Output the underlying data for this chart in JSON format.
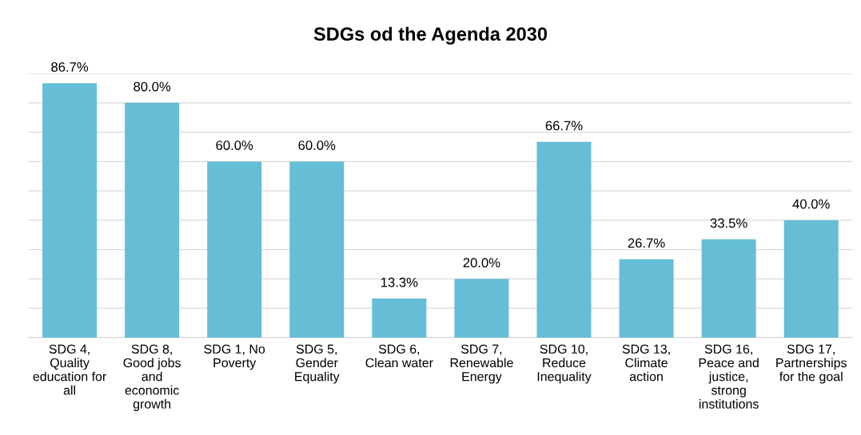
{
  "chart_data": {
    "type": "bar",
    "title": "SDGs od the Agenda 2030",
    "categories": [
      "SDG 4,\nQuality\neducation for\nall",
      "SDG 8,\nGood jobs\nand\neconomic\ngrowth",
      "SDG 1, No\nPoverty",
      "SDG 5,\nGender\nEquality",
      "SDG 6,\nClean water",
      "SDG 7,\nRenewable\nEnergy",
      "SDG 10,\nReduce\nInequality",
      "SDG 13,\nClimate\naction",
      "SDG 16,\nPeace and\njustice,\nstrong\ninstitutions",
      "SDG 17,\nPartnerships\nfor the goal"
    ],
    "values": [
      86.7,
      80.0,
      60.0,
      60.0,
      13.3,
      20.0,
      66.7,
      26.7,
      33.5,
      40.0
    ],
    "value_labels": [
      "86.7%",
      "80.0%",
      "60.0%",
      "60.0%",
      "13.3%",
      "20.0%",
      "66.7%",
      "26.7%",
      "33.5%",
      "40.0%"
    ],
    "color": "#65bdd6",
    "ylim": [
      0,
      90
    ],
    "yticks": [
      {
        "value": 0,
        "label": null
      },
      {
        "value": 10,
        "label": null
      },
      {
        "value": 20,
        "label": null
      },
      {
        "value": 30,
        "label": null
      },
      {
        "value": 40,
        "label": null
      },
      {
        "value": 50,
        "label": null
      },
      {
        "value": 60,
        "label": null
      },
      {
        "value": 70,
        "label": null
      },
      {
        "value": 80,
        "label": null
      },
      {
        "value": 90,
        "label": null
      }
    ],
    "grid": "y",
    "legend": false,
    "tick_labels": "x"
  }
}
